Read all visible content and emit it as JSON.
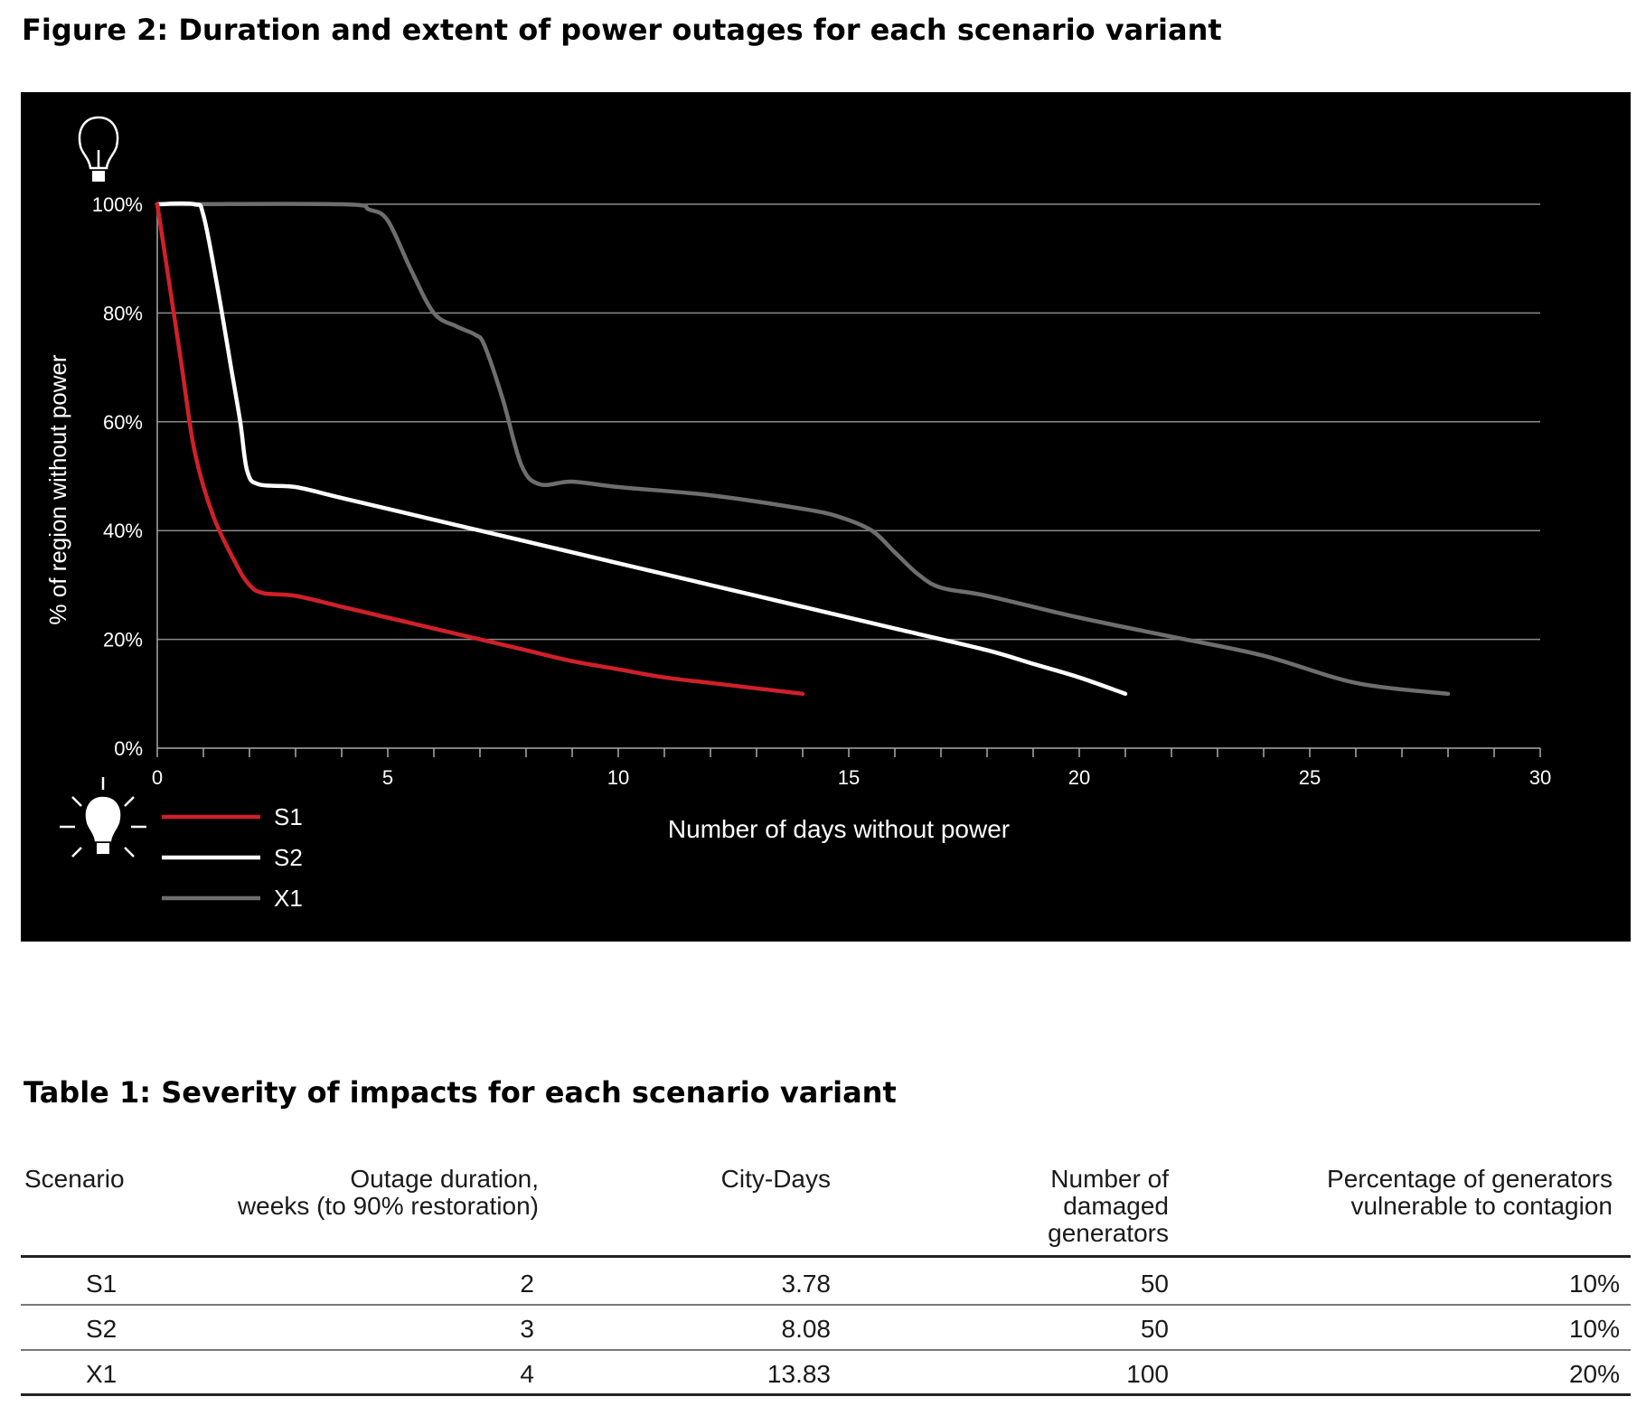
{
  "figure": {
    "title": "Figure 2: Duration and extent of power outages for each scenario variant"
  },
  "chart_data": {
    "type": "line",
    "title": "Figure 2: Duration and extent of power outages for each scenario variant",
    "xlabel": "Number of days without power",
    "ylabel": "% of region without power",
    "xlim": [
      0,
      30
    ],
    "ylim": [
      0,
      100
    ],
    "x_ticks": [
      "0",
      "5",
      "10",
      "15",
      "20",
      "25",
      "30"
    ],
    "x_tick_values": [
      0,
      5,
      10,
      15,
      20,
      25,
      30
    ],
    "y_ticks": [
      "0%",
      "20%",
      "40%",
      "60%",
      "80%",
      "100%"
    ],
    "y_tick_values": [
      0,
      20,
      40,
      60,
      80,
      100
    ],
    "grid": "horizontal",
    "legend_position": "bottom-left",
    "background": "#000000",
    "series": [
      {
        "name": "S1",
        "color": "#d0202a",
        "points": [
          [
            0,
            100
          ],
          [
            0.5,
            72
          ],
          [
            0.8,
            55
          ],
          [
            1.2,
            43
          ],
          [
            1.7,
            34
          ],
          [
            2.0,
            30
          ],
          [
            2.3,
            28.5
          ],
          [
            3,
            28
          ],
          [
            4,
            26
          ],
          [
            5,
            24
          ],
          [
            6,
            22
          ],
          [
            7,
            20
          ],
          [
            8,
            18
          ],
          [
            9,
            16
          ],
          [
            10,
            14.5
          ],
          [
            11,
            13
          ],
          [
            12,
            12
          ],
          [
            13,
            11
          ],
          [
            14,
            10
          ]
        ]
      },
      {
        "name": "S2",
        "color": "#ffffff",
        "points": [
          [
            0,
            100
          ],
          [
            0.8,
            100
          ],
          [
            1,
            98
          ],
          [
            1.3,
            85
          ],
          [
            1.6,
            70
          ],
          [
            1.8,
            60
          ],
          [
            1.95,
            51
          ],
          [
            2.2,
            48.5
          ],
          [
            3,
            48
          ],
          [
            4,
            46
          ],
          [
            6,
            42
          ],
          [
            8,
            38
          ],
          [
            10,
            34
          ],
          [
            12,
            30
          ],
          [
            14,
            26
          ],
          [
            16,
            22
          ],
          [
            18,
            18
          ],
          [
            19,
            15.5
          ],
          [
            20,
            13
          ],
          [
            21,
            10
          ]
        ]
      },
      {
        "name": "X1",
        "color": "#6e6e6e",
        "points": [
          [
            0,
            100
          ],
          [
            4,
            100
          ],
          [
            4.6,
            99
          ],
          [
            5,
            97
          ],
          [
            5.5,
            88
          ],
          [
            6,
            80
          ],
          [
            6.5,
            77.5
          ],
          [
            6.9,
            76
          ],
          [
            7.1,
            74
          ],
          [
            7.5,
            64
          ],
          [
            7.9,
            52
          ],
          [
            8.3,
            48.5
          ],
          [
            9,
            49
          ],
          [
            10,
            48
          ],
          [
            12,
            46.5
          ],
          [
            14,
            44
          ],
          [
            14.8,
            42.5
          ],
          [
            15.5,
            40
          ],
          [
            16,
            36
          ],
          [
            16.5,
            32
          ],
          [
            17,
            29.5
          ],
          [
            18,
            28
          ],
          [
            20,
            24
          ],
          [
            22,
            20.5
          ],
          [
            24,
            17
          ],
          [
            26,
            12
          ],
          [
            28,
            10
          ]
        ]
      }
    ]
  },
  "table": {
    "title": "Table 1: Severity of impacts for each scenario variant",
    "headers": {
      "scenario": "Scenario",
      "duration_l1": "Outage duration,",
      "duration_l2": "weeks (to 90% restoration)",
      "citydays": "City-Days",
      "gen_l1": "Number of",
      "gen_l2": "damaged",
      "gen_l3": "generators",
      "pct_l1": "Percentage of generators",
      "pct_l2": "vulnerable to contagion"
    },
    "rows": [
      {
        "scenario": "S1",
        "duration": "2",
        "citydays": "3.78",
        "generators": "50",
        "percentage": "10%"
      },
      {
        "scenario": "S2",
        "duration": "3",
        "citydays": "8.08",
        "generators": "50",
        "percentage": "10%"
      },
      {
        "scenario": "X1",
        "duration": "4",
        "citydays": "13.83",
        "generators": "100",
        "percentage": "20%"
      }
    ]
  },
  "icons": {
    "top": "lightbulb-outline-icon",
    "legend": "lightbulb-shining-icon"
  }
}
